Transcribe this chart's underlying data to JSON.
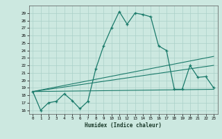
{
  "xlabel": "Humidex (Indice chaleur)",
  "ylabel": "",
  "background_color": "#cce8e0",
  "grid_color": "#aad0c8",
  "line_color": "#1a7a6a",
  "xlim": [
    -0.5,
    23.5
  ],
  "ylim": [
    15.5,
    30.0
  ],
  "xticks": [
    0,
    1,
    2,
    3,
    4,
    5,
    6,
    7,
    8,
    9,
    10,
    11,
    12,
    13,
    14,
    15,
    16,
    17,
    18,
    19,
    20,
    21,
    22,
    23
  ],
  "yticks": [
    16,
    17,
    18,
    19,
    20,
    21,
    22,
    23,
    24,
    25,
    26,
    27,
    28,
    29
  ],
  "curve1_x": [
    0,
    1,
    2,
    3,
    4,
    5,
    6,
    7,
    8,
    9,
    10,
    11,
    12,
    13,
    14,
    15,
    16,
    17,
    18,
    19,
    20,
    21,
    22,
    23
  ],
  "curve1_y": [
    18.5,
    16.0,
    17.0,
    17.2,
    18.2,
    17.3,
    16.2,
    17.2,
    21.5,
    24.6,
    27.0,
    29.2,
    27.5,
    29.0,
    28.8,
    28.5,
    24.6,
    24.0,
    18.8,
    18.8,
    22.0,
    20.4,
    20.5,
    19.0
  ],
  "line2_x": [
    0,
    23
  ],
  "line2_y": [
    18.5,
    23.2
  ],
  "line3_x": [
    0,
    23
  ],
  "line3_y": [
    18.5,
    22.0
  ],
  "line4_x": [
    0,
    23
  ],
  "line4_y": [
    18.5,
    18.8
  ]
}
